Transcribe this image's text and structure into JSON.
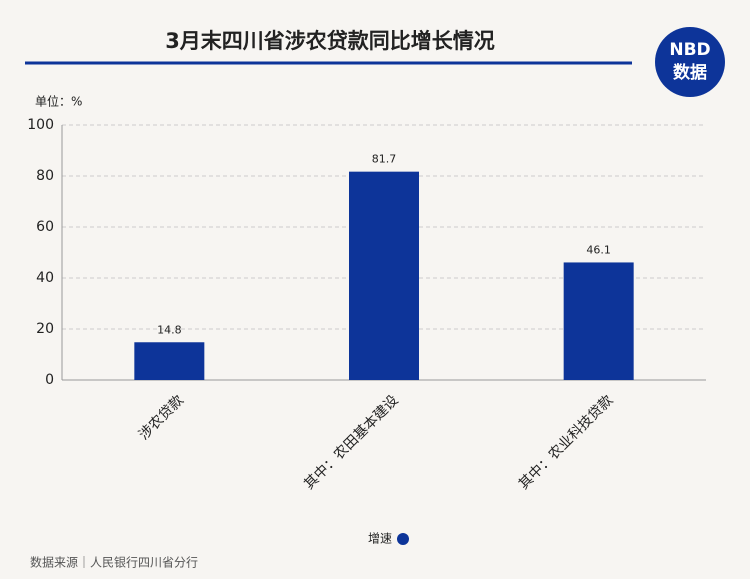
{
  "chart_data": {
    "type": "bar",
    "title": "3月末四川省涉农贷款同比增长情况",
    "y_label": "单位：%",
    "categories": [
      "涉农贷款",
      "其中：农田基本建设",
      "其中：农业科技贷款"
    ],
    "series": [
      {
        "name": "增速",
        "color": "#0d3499",
        "values": [
          14.8,
          81.7,
          46.1
        ]
      }
    ],
    "ylim": [
      0,
      100
    ],
    "yticks": [
      0,
      20,
      40,
      60,
      80,
      100
    ],
    "grid": true,
    "legend": "bottom",
    "source": "数据来源｜人民银行四川省分行"
  },
  "logo": {
    "top": "NBD",
    "bottom": "数据"
  }
}
